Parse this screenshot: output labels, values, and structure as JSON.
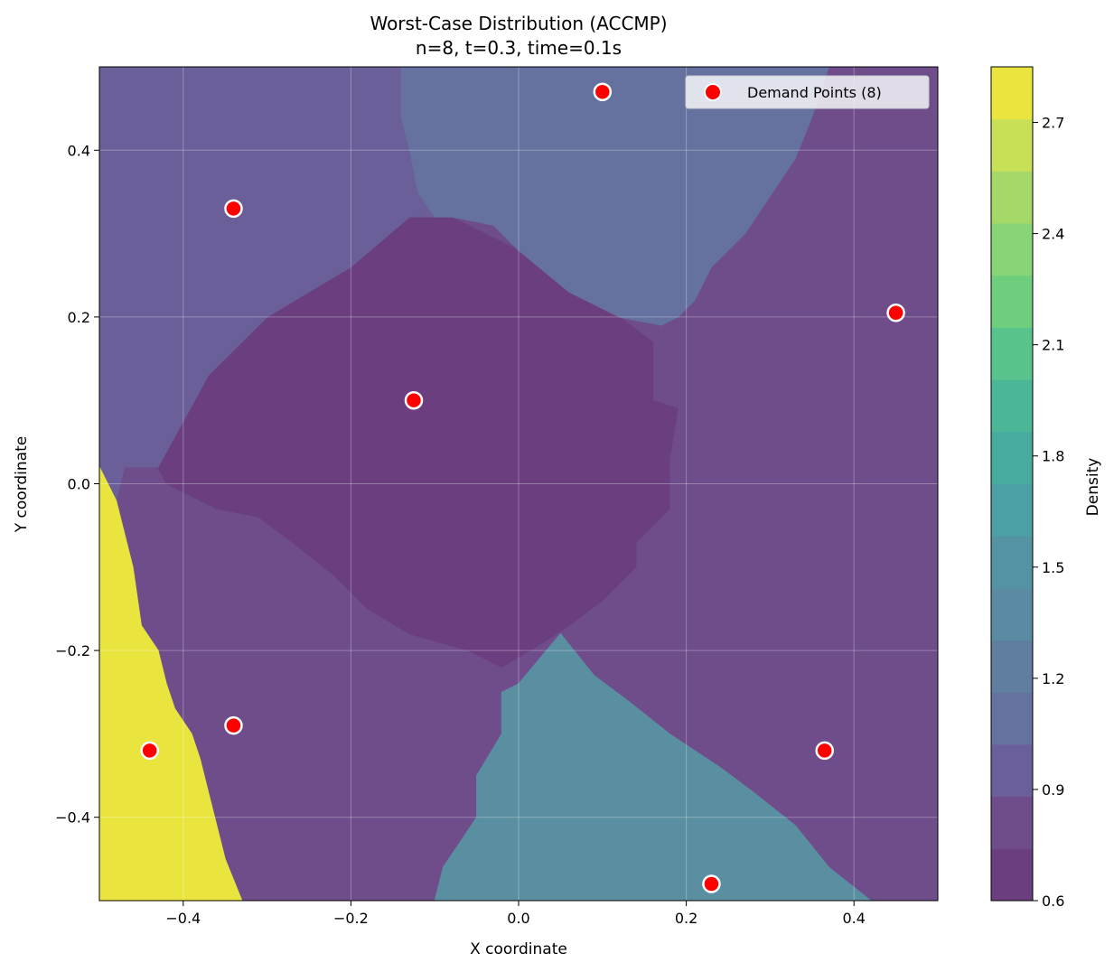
{
  "chart_data": {
    "type": "heatmap",
    "title": "Worst-Case Distribution (ACCMP)",
    "subtitle": "n=8, t=0.3, time=0.1s",
    "xlabel": "X coordinate",
    "ylabel": "Y coordinate",
    "xlim": [
      -0.5,
      0.5
    ],
    "ylim": [
      -0.5,
      0.5
    ],
    "x_ticks": [
      -0.4,
      -0.2,
      0.0,
      0.2,
      0.4
    ],
    "y_ticks": [
      -0.4,
      -0.2,
      0.0,
      0.2,
      0.4
    ],
    "x_tick_labels": [
      "−0.4",
      "−0.2",
      "0.0",
      "0.2",
      "0.4"
    ],
    "y_tick_labels": [
      "−0.4",
      "−0.2",
      "0.0",
      "0.2",
      "0.4"
    ],
    "grid": true,
    "colorbar": {
      "label": "Density",
      "range": [
        0.6,
        2.85
      ],
      "ticks": [
        0.6,
        0.9,
        1.2,
        1.5,
        1.8,
        2.1,
        2.4,
        2.7
      ],
      "tick_labels": [
        "0.6",
        "0.9",
        "1.2",
        "1.5",
        "1.8",
        "2.1",
        "2.4",
        "2.7"
      ],
      "colors": [
        "#6b3f7f",
        "#6e4d8a",
        "#6a5f98",
        "#65719f",
        "#607e9f",
        "#5b8aa3",
        "#5393a4",
        "#4c9fa4",
        "#48aba0",
        "#4bb798",
        "#58c38c",
        "#6ece7e",
        "#88d477",
        "#a4d869",
        "#c8df58",
        "#eae43f"
      ]
    },
    "regions": [
      {
        "name": "center",
        "density": 0.65,
        "color": "#6b3f7f",
        "polygon": [
          [
            -0.43,
            0.02
          ],
          [
            -0.37,
            0.13
          ],
          [
            -0.3,
            0.2
          ],
          [
            -0.2,
            0.26
          ],
          [
            -0.13,
            0.32
          ],
          [
            -0.08,
            0.32
          ],
          [
            0.0,
            0.28
          ],
          [
            0.06,
            0.23
          ],
          [
            0.12,
            0.2
          ],
          [
            0.16,
            0.17
          ],
          [
            0.16,
            0.1
          ],
          [
            0.19,
            0.09
          ],
          [
            0.18,
            0.03
          ],
          [
            0.18,
            -0.03
          ],
          [
            0.14,
            -0.07
          ],
          [
            0.14,
            -0.1
          ],
          [
            0.1,
            -0.14
          ],
          [
            0.06,
            -0.17
          ],
          [
            0.03,
            -0.19
          ],
          [
            -0.02,
            -0.22
          ],
          [
            -0.06,
            -0.2
          ],
          [
            -0.13,
            -0.18
          ],
          [
            -0.18,
            -0.15
          ],
          [
            -0.22,
            -0.11
          ],
          [
            -0.27,
            -0.07
          ],
          [
            -0.31,
            -0.04
          ],
          [
            -0.36,
            -0.03
          ],
          [
            -0.42,
            0.0
          ]
        ]
      },
      {
        "name": "upper-left",
        "density": 1.0,
        "color": "#6a5f98",
        "polygon": [
          [
            -0.5,
            0.5
          ],
          [
            -0.14,
            0.5
          ],
          [
            -0.14,
            0.44
          ],
          [
            -0.13,
            0.4
          ],
          [
            -0.12,
            0.35
          ],
          [
            -0.1,
            0.32
          ],
          [
            -0.13,
            0.32
          ],
          [
            -0.2,
            0.26
          ],
          [
            -0.3,
            0.2
          ],
          [
            -0.37,
            0.13
          ],
          [
            -0.43,
            0.02
          ],
          [
            -0.47,
            0.02
          ],
          [
            -0.48,
            -0.02
          ],
          [
            -0.5,
            0.0
          ]
        ]
      },
      {
        "name": "upper-middle",
        "density": 1.05,
        "color": "#65719f",
        "polygon": [
          [
            -0.14,
            0.5
          ],
          [
            0.37,
            0.5
          ],
          [
            0.35,
            0.44
          ],
          [
            0.33,
            0.39
          ],
          [
            0.29,
            0.33
          ],
          [
            0.27,
            0.3
          ],
          [
            0.23,
            0.26
          ],
          [
            0.21,
            0.22
          ],
          [
            0.19,
            0.2
          ],
          [
            0.17,
            0.19
          ],
          [
            0.12,
            0.2
          ],
          [
            0.06,
            0.23
          ],
          [
            0.0,
            0.28
          ],
          [
            -0.03,
            0.31
          ],
          [
            -0.08,
            0.32
          ],
          [
            -0.1,
            0.32
          ],
          [
            -0.12,
            0.35
          ],
          [
            -0.13,
            0.4
          ],
          [
            -0.14,
            0.44
          ]
        ]
      },
      {
        "name": "bottom-middle",
        "density": 1.4,
        "color": "#5a8fa2",
        "polygon": [
          [
            0.05,
            -0.18
          ],
          [
            0.09,
            -0.23
          ],
          [
            0.13,
            -0.26
          ],
          [
            0.18,
            -0.3
          ],
          [
            0.24,
            -0.34
          ],
          [
            0.28,
            -0.37
          ],
          [
            0.33,
            -0.41
          ],
          [
            0.37,
            -0.46
          ],
          [
            0.42,
            -0.5
          ],
          [
            -0.1,
            -0.5
          ],
          [
            -0.09,
            -0.46
          ],
          [
            -0.05,
            -0.4
          ],
          [
            -0.05,
            -0.35
          ],
          [
            -0.02,
            -0.3
          ],
          [
            -0.02,
            -0.25
          ],
          [
            0.0,
            -0.24
          ]
        ]
      },
      {
        "name": "bottom-left",
        "density": 2.8,
        "color": "#eae43f",
        "polygon": [
          [
            -0.5,
            0.02
          ],
          [
            -0.48,
            -0.02
          ],
          [
            -0.46,
            -0.1
          ],
          [
            -0.45,
            -0.17
          ],
          [
            -0.43,
            -0.2
          ],
          [
            -0.42,
            -0.24
          ],
          [
            -0.41,
            -0.27
          ],
          [
            -0.39,
            -0.3
          ],
          [
            -0.38,
            -0.33
          ],
          [
            -0.37,
            -0.37
          ],
          [
            -0.36,
            -0.41
          ],
          [
            -0.35,
            -0.45
          ],
          [
            -0.33,
            -0.5
          ],
          [
            -0.5,
            -0.5
          ]
        ]
      }
    ],
    "background_density": 0.8,
    "background_color": "#6e4d8a",
    "legend": {
      "label": "Demand Points (8)",
      "placement": "upper right"
    },
    "points": {
      "name": "Demand Points (8)",
      "x": [
        0.1,
        -0.34,
        0.45,
        -0.125,
        -0.44,
        -0.34,
        0.365,
        0.23
      ],
      "y": [
        0.47,
        0.33,
        0.205,
        0.1,
        -0.32,
        -0.29,
        -0.32,
        -0.48
      ],
      "color": "#ff0000"
    }
  }
}
